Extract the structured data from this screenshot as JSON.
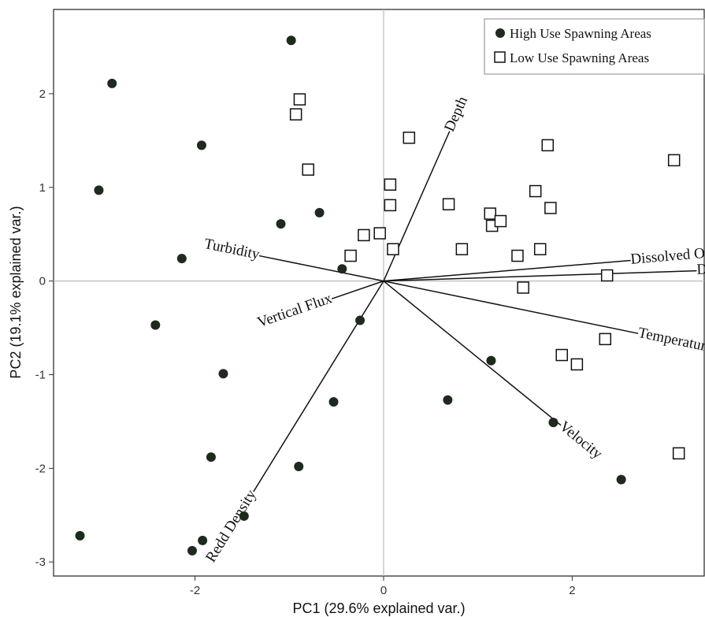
{
  "chart_data": {
    "type": "scatter",
    "subtype": "pca-biplot",
    "title": "",
    "xlabel": "PC1 (29.6% explained var.)",
    "ylabel": "PC2 (19.1% explained var.)",
    "xlim": [
      -3.5,
      3.4
    ],
    "ylim": [
      -3.15,
      2.9
    ],
    "x_ticks": [
      -2,
      0,
      2
    ],
    "y_ticks": [
      -3,
      -2,
      -1,
      0,
      1,
      2
    ],
    "grid": "zero lines only",
    "legend_position": "top-right",
    "series": [
      {
        "name": "High Use Spawning Areas",
        "marker": "filled-circle",
        "color": "#1f2a1f",
        "points": [
          [
            -3.22,
            -2.72
          ],
          [
            -2.03,
            -2.88
          ],
          [
            -1.92,
            -2.77
          ],
          [
            -1.48,
            -2.51
          ],
          [
            -1.83,
            -1.88
          ],
          [
            -0.9,
            -1.98
          ],
          [
            -1.7,
            -0.99
          ],
          [
            -0.53,
            -1.29
          ],
          [
            -2.42,
            -0.47
          ],
          [
            -0.25,
            -0.42
          ],
          [
            -2.14,
            0.24
          ],
          [
            -0.44,
            0.13
          ],
          [
            -1.09,
            0.61
          ],
          [
            -0.68,
            0.73
          ],
          [
            -3.02,
            0.97
          ],
          [
            -1.93,
            1.45
          ],
          [
            -2.88,
            2.11
          ],
          [
            -0.98,
            2.57
          ],
          [
            1.14,
            -0.85
          ],
          [
            0.68,
            -1.27
          ],
          [
            1.8,
            -1.51
          ],
          [
            2.52,
            -2.12
          ]
        ]
      },
      {
        "name": "Low Use Spawning Areas",
        "marker": "open-square",
        "color": "#111111",
        "points": [
          [
            -0.93,
            1.78
          ],
          [
            -0.89,
            1.94
          ],
          [
            -0.8,
            1.19
          ],
          [
            0.27,
            1.53
          ],
          [
            0.07,
            1.03
          ],
          [
            0.07,
            0.81
          ],
          [
            -0.04,
            0.51
          ],
          [
            -0.21,
            0.49
          ],
          [
            -0.35,
            0.27
          ],
          [
            0.1,
            0.34
          ],
          [
            0.69,
            0.82
          ],
          [
            0.83,
            0.34
          ],
          [
            1.13,
            0.72
          ],
          [
            1.15,
            0.59
          ],
          [
            1.24,
            0.64
          ],
          [
            1.61,
            0.96
          ],
          [
            1.74,
            1.45
          ],
          [
            1.77,
            0.78
          ],
          [
            1.66,
            0.34
          ],
          [
            1.42,
            0.27
          ],
          [
            1.48,
            -0.07
          ],
          [
            2.37,
            0.06
          ],
          [
            2.35,
            -0.62
          ],
          [
            1.89,
            -0.79
          ],
          [
            2.05,
            -0.89
          ],
          [
            3.08,
            1.29
          ],
          [
            3.13,
            -1.84
          ]
        ]
      }
    ],
    "vectors": [
      {
        "label": "Depth",
        "end": [
          0.7,
          1.6
        ]
      },
      {
        "label": "Dissolved Oxygen",
        "end": [
          2.62,
          0.22
        ]
      },
      {
        "label": "Direction",
        "end": [
          3.32,
          0.11
        ]
      },
      {
        "label": "Temperature",
        "end": [
          2.7,
          -0.56
        ]
      },
      {
        "label": "Velocity",
        "end": [
          1.88,
          -1.54
        ]
      },
      {
        "label": "Redd Density",
        "end": [
          -1.38,
          -2.25
        ]
      },
      {
        "label": "Vertical Flux",
        "end": [
          -0.55,
          -0.19
        ]
      },
      {
        "label": "Turbidity",
        "end": [
          -1.32,
          0.27
        ]
      }
    ]
  },
  "legend": {
    "high_label": "High Use Spawning Areas",
    "low_label": "Low Use Spawning Areas"
  }
}
